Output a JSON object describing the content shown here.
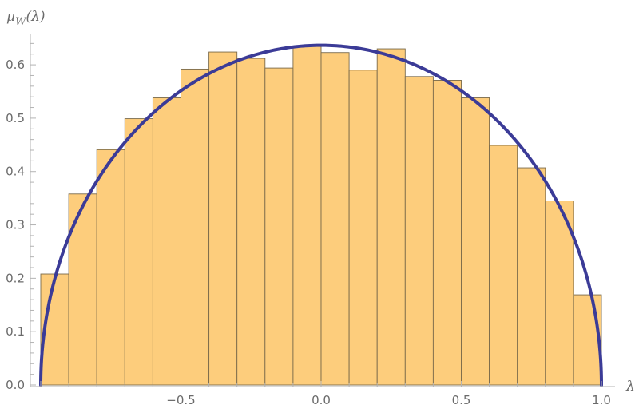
{
  "chart_data": {
    "type": "bar",
    "ylabel": "μW(λ)",
    "ylabel_parts": {
      "main": "μ",
      "sub": "W",
      "arg": "(λ)"
    },
    "xlabel": "λ",
    "xlim": [
      -1.0,
      1.0
    ],
    "ylim": [
      0.0,
      0.66
    ],
    "x_ticks": [
      {
        "value": -0.5,
        "label": "−0.5"
      },
      {
        "value": 0.0,
        "label": "0.0"
      },
      {
        "value": 0.5,
        "label": "0.5"
      },
      {
        "value": 1.0,
        "label": "1.0"
      }
    ],
    "y_ticks": [
      {
        "value": 0.0,
        "label": "0.0"
      },
      {
        "value": 0.1,
        "label": "0.1"
      },
      {
        "value": 0.2,
        "label": "0.2"
      },
      {
        "value": 0.3,
        "label": "0.3"
      },
      {
        "value": 0.4,
        "label": "0.4"
      },
      {
        "value": 0.5,
        "label": "0.5"
      },
      {
        "value": 0.6,
        "label": "0.6"
      }
    ],
    "bins": [
      {
        "x0": -1.0,
        "x1": -0.9,
        "value": 0.208
      },
      {
        "x0": -0.9,
        "x1": -0.8,
        "value": 0.358
      },
      {
        "x0": -0.8,
        "x1": -0.7,
        "value": 0.441
      },
      {
        "x0": -0.7,
        "x1": -0.6,
        "value": 0.499
      },
      {
        "x0": -0.6,
        "x1": -0.5,
        "value": 0.538
      },
      {
        "x0": -0.5,
        "x1": -0.4,
        "value": 0.592
      },
      {
        "x0": -0.4,
        "x1": -0.3,
        "value": 0.624
      },
      {
        "x0": -0.3,
        "x1": -0.2,
        "value": 0.612
      },
      {
        "x0": -0.2,
        "x1": -0.1,
        "value": 0.594
      },
      {
        "x0": -0.1,
        "x1": 0.0,
        "value": 0.635
      },
      {
        "x0": 0.0,
        "x1": 0.1,
        "value": 0.623
      },
      {
        "x0": 0.1,
        "x1": 0.2,
        "value": 0.59
      },
      {
        "x0": 0.2,
        "x1": 0.3,
        "value": 0.63
      },
      {
        "x0": 0.3,
        "x1": 0.4,
        "value": 0.578
      },
      {
        "x0": 0.4,
        "x1": 0.5,
        "value": 0.571
      },
      {
        "x0": 0.5,
        "x1": 0.6,
        "value": 0.538
      },
      {
        "x0": 0.6,
        "x1": 0.7,
        "value": 0.449
      },
      {
        "x0": 0.7,
        "x1": 0.8,
        "value": 0.407
      },
      {
        "x0": 0.8,
        "x1": 0.9,
        "value": 0.345
      },
      {
        "x0": 0.9,
        "x1": 1.0,
        "value": 0.169
      }
    ],
    "curve": {
      "type": "line",
      "formula": "(2/π)·√(1−λ²)",
      "domain": [
        -1.0,
        1.0
      ]
    },
    "grid": false,
    "legend": "none",
    "colors": {
      "bar_fill": "#fdcd7c",
      "bar_stroke": "#7a6a4a",
      "curve": "#3b3b97",
      "axis": "#b3b3b3",
      "tick_text": "#6b6b6b"
    }
  }
}
